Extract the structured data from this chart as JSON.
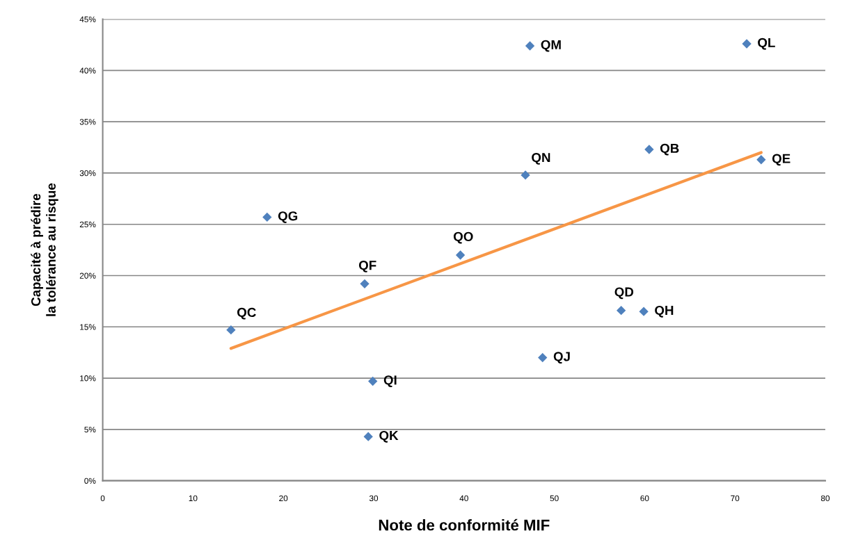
{
  "chart_data": {
    "type": "scatter",
    "xlabel": "Note de conformité MIF",
    "ylabel": "Capacité à prédire\nla tolérance au risque",
    "series": [
      {
        "marker": "diamond",
        "color": "#4f81bd",
        "x": [
          18.2,
          14.2,
          29.0,
          39.6,
          29.9,
          29.4,
          46.8,
          47.3,
          71.3,
          60.5,
          72.9,
          57.4,
          59.9,
          48.7
        ],
        "values": [
          25.7,
          14.7,
          19.2,
          22.0,
          9.7,
          4.3,
          29.8,
          42.4,
          42.6,
          32.3,
          31.3,
          16.6,
          16.5,
          12.0
        ]
      },
      {
        "type": "line",
        "color": "#f79646",
        "line_style": "solid",
        "x": [
          14.2,
          72.9
        ],
        "values": [
          12.9,
          32.0
        ]
      }
    ],
    "annotations": [
      {
        "text": "QG",
        "x": 18.2,
        "y": 25.7
      },
      {
        "text": "QC",
        "x": 14.2,
        "y": 14.7
      },
      {
        "text": "QF",
        "x": 29.0,
        "y": 19.2
      },
      {
        "text": "QO",
        "x": 39.6,
        "y": 22.0
      },
      {
        "text": "QI",
        "x": 29.9,
        "y": 9.7
      },
      {
        "text": "QK",
        "x": 29.4,
        "y": 4.3
      },
      {
        "text": "QN",
        "x": 46.8,
        "y": 29.8
      },
      {
        "text": "QM",
        "x": 47.3,
        "y": 42.4
      },
      {
        "text": "QL",
        "x": 71.3,
        "y": 42.6
      },
      {
        "text": "QB",
        "x": 60.5,
        "y": 32.3
      },
      {
        "text": "QE",
        "x": 72.9,
        "y": 31.3
      },
      {
        "text": "QD",
        "x": 57.4,
        "y": 16.6
      },
      {
        "text": "QH",
        "x": 59.9,
        "y": 16.5
      },
      {
        "text": "QJ",
        "x": 48.7,
        "y": 12.0
      }
    ],
    "xlim": [
      0,
      80
    ],
    "xticks": [
      0,
      10,
      20,
      30,
      40,
      50,
      60,
      70,
      80
    ],
    "ylim": [
      0,
      45
    ],
    "yticks": [
      {
        "value": 0,
        "label": "0%"
      },
      {
        "value": 5,
        "label": "5%"
      },
      {
        "value": 10,
        "label": "10%"
      },
      {
        "value": 15,
        "label": "15%"
      },
      {
        "value": 20,
        "label": "20%"
      },
      {
        "value": 25,
        "label": "25%"
      },
      {
        "value": 30,
        "label": "30%"
      },
      {
        "value": 35,
        "label": "35%"
      },
      {
        "value": 40,
        "label": "40%"
      },
      {
        "value": 45,
        "label": "45%"
      }
    ],
    "grid": "y"
  }
}
